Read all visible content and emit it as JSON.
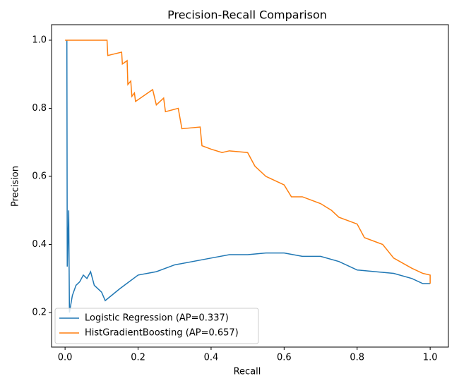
{
  "chart_data": {
    "type": "line",
    "title": "Precision-Recall Comparison",
    "x_label": "Recall",
    "y_label": "Precision",
    "xlim": [
      -0.037,
      1.05
    ],
    "ylim": [
      0.0985,
      1.0456
    ],
    "xticks": [
      {
        "value": 0,
        "label": "0.0"
      },
      0.2,
      0.4,
      0.6,
      0.8,
      {
        "value": 1,
        "label": "1.0"
      }
    ],
    "yticks": [
      0.2,
      0.4,
      0.6,
      0.8,
      {
        "value": 1,
        "label": "1.0"
      }
    ],
    "legend": "lower left",
    "series": [
      {
        "name": "Logistic Regression (AP=0.337)",
        "color": "#1f77b4",
        "x": [
          0.005,
          0.006,
          0.01,
          0.012,
          0.02,
          0.03,
          0.04,
          0.05,
          0.06,
          0.07,
          0.08,
          0.1,
          0.11,
          0.15,
          0.2,
          0.25,
          0.3,
          0.4,
          0.45,
          0.5,
          0.55,
          0.6,
          0.65,
          0.7,
          0.75,
          0.8,
          0.85,
          0.9,
          0.95,
          0.98,
          1.0
        ],
        "values": [
          1.0,
          0.335,
          0.5,
          0.2,
          0.25,
          0.28,
          0.29,
          0.31,
          0.3,
          0.32,
          0.28,
          0.26,
          0.235,
          0.27,
          0.31,
          0.32,
          0.34,
          0.36,
          0.37,
          0.37,
          0.375,
          0.375,
          0.365,
          0.365,
          0.35,
          0.325,
          0.32,
          0.315,
          0.3,
          0.285,
          0.285
        ]
      },
      {
        "name": "HistGradientBoosting (AP=0.657)",
        "color": "#ff7f0e",
        "x": [
          0.0,
          0.115,
          0.117,
          0.155,
          0.157,
          0.17,
          0.172,
          0.18,
          0.183,
          0.19,
          0.193,
          0.24,
          0.25,
          0.27,
          0.275,
          0.31,
          0.32,
          0.37,
          0.375,
          0.4,
          0.43,
          0.45,
          0.5,
          0.52,
          0.55,
          0.6,
          0.62,
          0.65,
          0.7,
          0.73,
          0.75,
          0.8,
          0.82,
          0.87,
          0.9,
          0.95,
          0.98,
          1.0,
          1.0
        ],
        "values": [
          1.0,
          1.0,
          0.955,
          0.965,
          0.93,
          0.94,
          0.87,
          0.88,
          0.835,
          0.845,
          0.82,
          0.855,
          0.81,
          0.83,
          0.79,
          0.8,
          0.74,
          0.745,
          0.69,
          0.68,
          0.67,
          0.675,
          0.67,
          0.63,
          0.6,
          0.575,
          0.54,
          0.54,
          0.52,
          0.5,
          0.48,
          0.46,
          0.42,
          0.4,
          0.36,
          0.33,
          0.315,
          0.31,
          0.285
        ]
      }
    ]
  }
}
